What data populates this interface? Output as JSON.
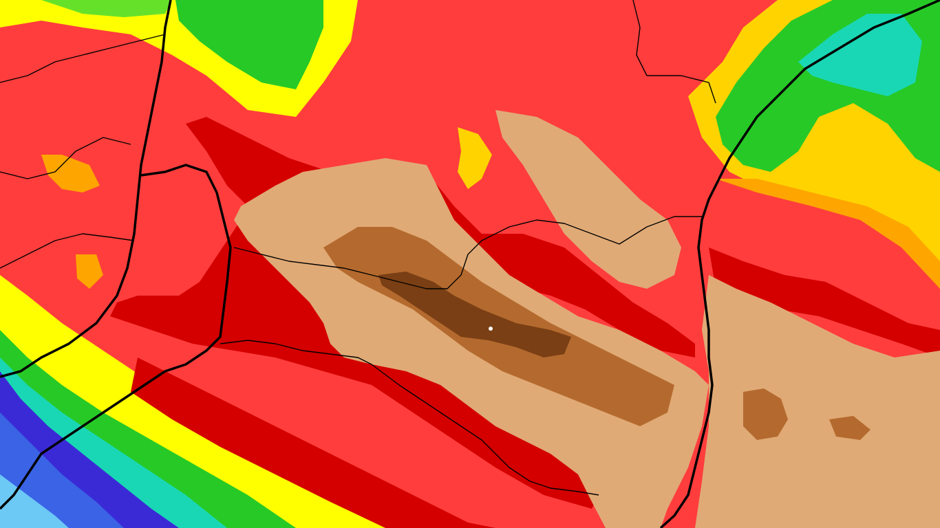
{
  "map": {
    "type": "precipitation-anomaly-field",
    "palette": {
      "lightblue": "#6cc8f5",
      "blue": "#3a63e6",
      "violet": "#3a2ad6",
      "teal": "#19d7b5",
      "green": "#27c927",
      "lightgreen": "#66e12a",
      "yellow": "#ffff00",
      "yellow2": "#ffd300",
      "orange": "#ffa500",
      "red": "#ff3d3d",
      "darkred": "#d40000",
      "tan": "#e0aa76",
      "brown": "#b46a2e",
      "darkbrown": "#7a3f14",
      "border": "#000000"
    },
    "markers": [
      "station-marker"
    ]
  }
}
